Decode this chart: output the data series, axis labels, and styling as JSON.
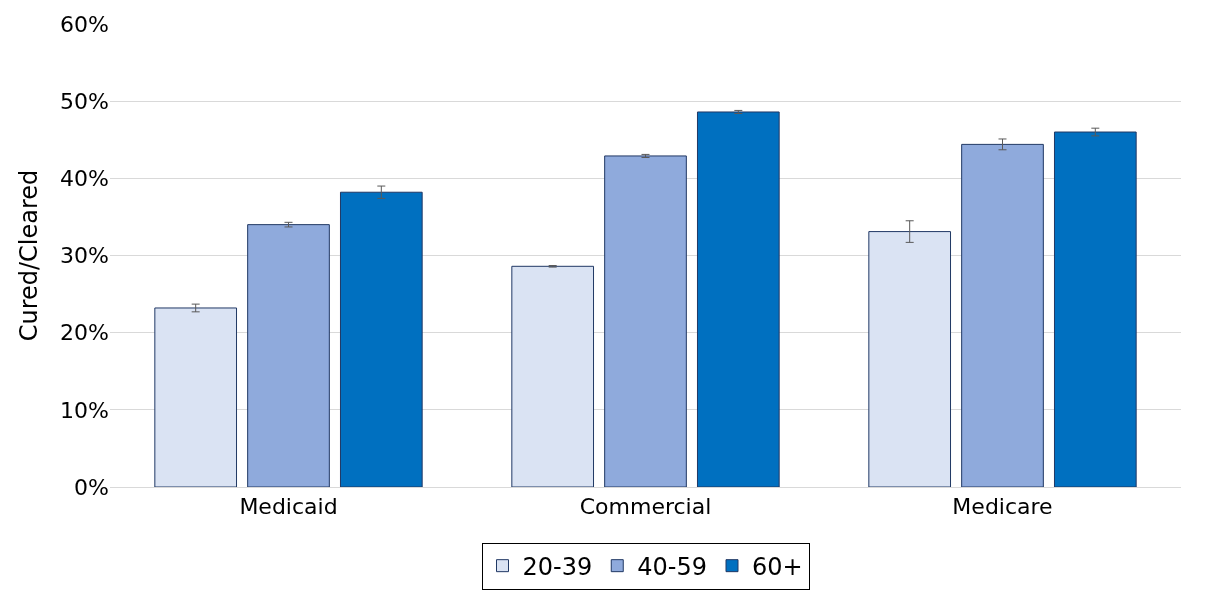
{
  "chart_data": {
    "type": "bar",
    "ylabel": "Cured/Cleared",
    "categories": [
      "Medicaid",
      "Commercial",
      "Medicare"
    ],
    "series": [
      {
        "name": "20-39",
        "color": "#dae3f3",
        "values": [
          23.2,
          28.6,
          33.1
        ],
        "errors": [
          0.5,
          0.1,
          1.4
        ]
      },
      {
        "name": "40-59",
        "color": "#8faadc",
        "values": [
          34.0,
          42.9,
          44.4
        ],
        "errors": [
          0.3,
          0.2,
          0.7
        ]
      },
      {
        "name": "60+",
        "color": "#0070c0",
        "values": [
          38.2,
          48.6,
          46.0
        ],
        "errors": [
          0.8,
          0.2,
          0.5
        ]
      }
    ],
    "ylim": [
      0,
      60
    ],
    "yticks": [
      {
        "value": 0,
        "label": "0%"
      },
      {
        "value": 10,
        "label": "10%"
      },
      {
        "value": 20,
        "label": "20%"
      },
      {
        "value": 30,
        "label": "30%"
      },
      {
        "value": 40,
        "label": "40%"
      },
      {
        "value": 50,
        "label": "50%"
      },
      {
        "value": 60,
        "label": "60%"
      }
    ],
    "grid": "y",
    "legend": "bottom"
  }
}
